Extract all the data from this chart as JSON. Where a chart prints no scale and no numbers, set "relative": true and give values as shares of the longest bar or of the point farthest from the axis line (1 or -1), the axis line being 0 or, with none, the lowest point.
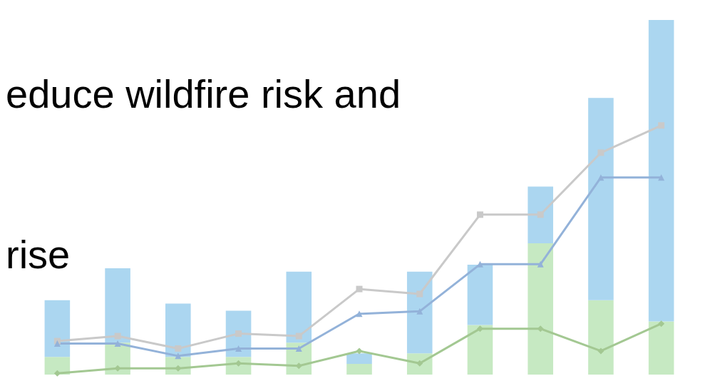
{
  "chart_data": [
    {
      "type": "bar",
      "relative": true,
      "stacked": true,
      "categories": [
        null,
        null,
        null,
        null,
        null,
        null,
        null,
        null,
        null,
        null,
        null
      ],
      "annotations": [
        "educe wildfire risk and",
        "rise"
      ],
      "series": [
        {
          "color": "#c6e9c2",
          "values": [
            0.05,
            0.09,
            0.05,
            0.05,
            0.09,
            0.03,
            0.06,
            0.14,
            0.37,
            0.21,
            0.15
          ]
        },
        {
          "color": "#abd6f0",
          "values": [
            0.16,
            0.21,
            0.15,
            0.13,
            0.2,
            0.03,
            0.23,
            0.17,
            0.16,
            0.57,
            0.85
          ]
        }
      ]
    },
    {
      "type": "line",
      "relative": true,
      "categories": [
        null,
        null,
        null,
        null,
        null,
        null,
        null,
        null,
        null,
        null,
        null
      ],
      "series": [
        {
          "color": "#c9c9c9",
          "marker": "square",
          "values": [
            0.13,
            0.15,
            0.1,
            0.16,
            0.15,
            0.34,
            0.32,
            0.64,
            0.64,
            0.89,
            1.0
          ]
        },
        {
          "color": "#93b2d9",
          "marker": "triangle",
          "values": [
            0.12,
            0.12,
            0.07,
            0.1,
            0.1,
            0.24,
            0.25,
            0.44,
            0.44,
            0.79,
            0.79
          ]
        },
        {
          "color": "#a3c892",
          "marker": "diamond",
          "values": [
            0.0,
            0.02,
            0.02,
            0.04,
            0.03,
            0.09,
            0.04,
            0.18,
            0.18,
            0.09,
            0.2
          ]
        }
      ]
    }
  ]
}
